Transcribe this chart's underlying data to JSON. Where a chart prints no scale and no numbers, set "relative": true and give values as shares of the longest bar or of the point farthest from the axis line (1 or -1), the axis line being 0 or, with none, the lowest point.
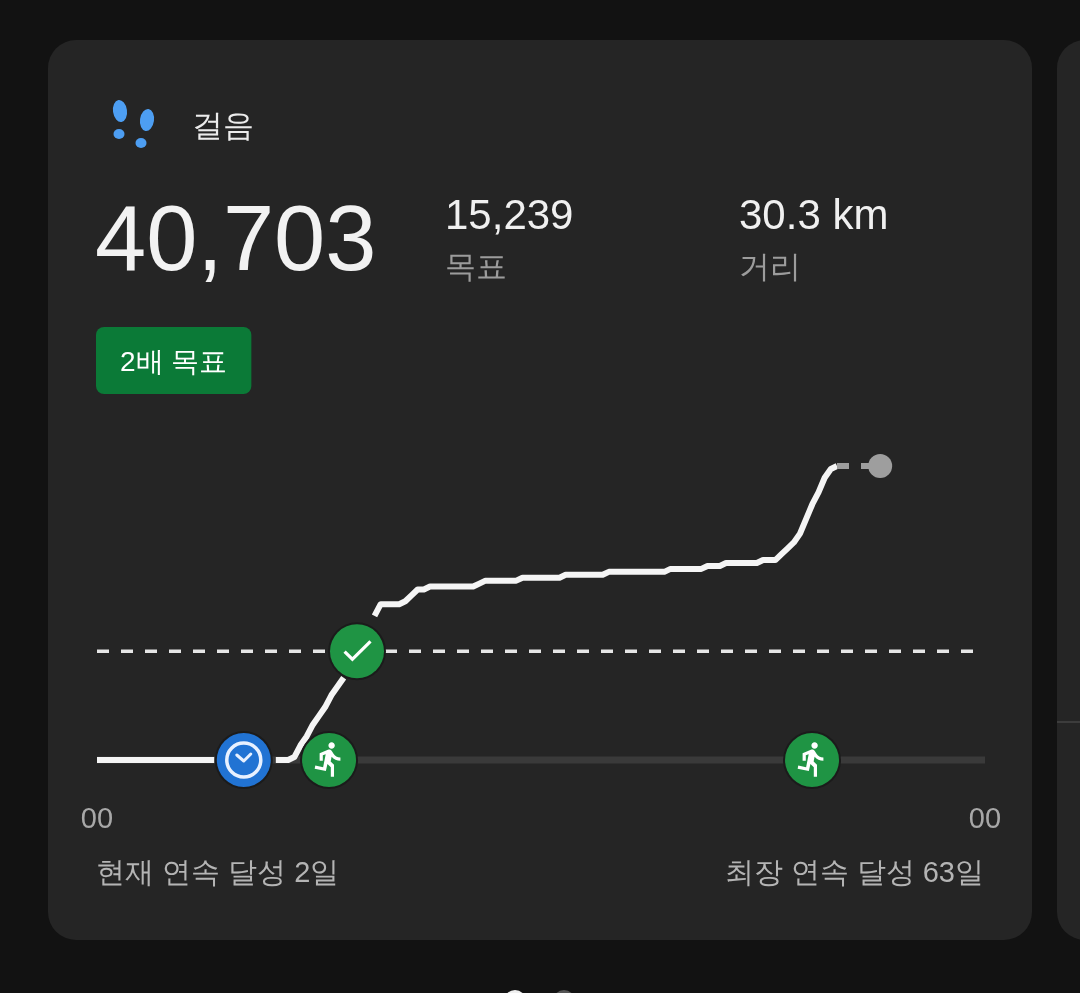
{
  "chart_data": {
    "type": "line",
    "title": "걸음",
    "relative": true,
    "categories": [
      "00",
      null,
      null,
      null,
      null,
      null,
      null,
      null,
      null,
      null,
      null,
      null,
      null,
      null,
      null,
      null,
      null,
      null,
      null,
      null,
      null,
      null,
      null,
      null,
      null,
      null,
      null,
      null,
      null,
      null,
      null,
      null,
      null,
      null,
      null,
      null,
      null,
      null,
      null,
      null,
      null,
      null,
      null,
      null,
      null,
      null,
      null,
      null,
      null,
      null,
      null,
      null,
      null,
      null,
      null,
      null,
      null,
      null,
      null,
      null,
      null,
      null,
      null,
      null,
      null,
      null,
      null,
      null,
      null,
      null,
      null,
      null,
      null,
      null,
      null,
      null,
      null,
      null,
      null,
      null,
      null,
      null,
      null,
      null,
      null,
      null,
      null,
      null,
      null,
      null,
      null,
      null,
      null,
      null,
      null,
      null,
      null,
      null,
      null,
      null,
      null,
      null,
      null,
      null,
      null,
      null,
      null,
      null,
      null,
      null,
      null,
      null,
      null,
      null,
      null,
      null,
      null,
      null,
      null,
      null,
      null,
      null,
      null,
      null,
      null,
      null,
      null,
      null,
      null,
      null,
      null,
      null,
      null,
      null,
      null,
      null,
      null,
      null,
      null,
      null,
      null,
      null,
      null,
      null,
      "00"
    ],
    "series": [
      {
        "color": "#f5f5f5",
        "marker": "none",
        "line_style": "solid",
        "values": [
          0,
          0,
          0,
          0,
          0,
          0,
          0,
          0,
          0,
          0,
          0,
          0,
          0,
          0,
          0,
          0,
          0,
          0,
          0,
          0,
          null,
          null,
          null,
          null,
          null,
          null,
          null,
          null,
          null,
          0,
          0,
          0,
          0.01,
          0.05,
          0.08,
          0.12,
          0.15,
          0.18,
          0.22,
          0.25,
          0.28,
          null,
          null,
          null,
          null,
          0.49,
          0.53,
          0.53,
          0.53,
          0.53,
          0.54,
          0.56,
          0.58,
          0.58,
          0.59,
          0.59,
          0.59,
          0.59,
          0.59,
          0.59,
          0.59,
          0.59,
          0.6,
          0.61,
          0.61,
          0.61,
          0.61,
          0.61,
          0.61,
          0.62,
          0.62,
          0.62,
          0.62,
          0.62,
          0.62,
          0.62,
          0.63,
          0.63,
          0.63,
          0.63,
          0.63,
          0.63,
          0.63,
          0.64,
          0.64,
          0.64,
          0.64,
          0.64,
          0.64,
          0.64,
          0.64,
          0.64,
          0.64,
          0.65,
          0.65,
          0.65,
          0.65,
          0.65,
          0.65,
          0.66,
          0.66,
          0.66,
          0.67,
          0.67,
          0.67,
          0.67,
          0.67,
          0.67,
          0.68,
          0.68,
          0.68,
          0.7,
          0.72,
          0.74,
          0.77,
          0.82,
          0.87,
          0.91,
          0.96,
          0.99,
          1.0,
          null,
          null,
          null,
          null,
          null,
          null,
          null,
          null,
          null,
          null,
          null,
          null,
          null,
          null,
          null,
          null,
          null,
          null,
          null,
          null,
          null,
          null,
          null,
          null
        ]
      },
      {
        "color": "#9e9e9e",
        "marker": "none",
        "line_style": "dashed",
        "values": [
          null,
          null,
          null,
          null,
          null,
          null,
          null,
          null,
          null,
          null,
          null,
          null,
          null,
          null,
          null,
          null,
          null,
          null,
          null,
          null,
          null,
          null,
          null,
          null,
          null,
          null,
          null,
          null,
          null,
          null,
          null,
          null,
          null,
          null,
          null,
          null,
          null,
          null,
          null,
          null,
          null,
          null,
          null,
          null,
          null,
          null,
          null,
          null,
          null,
          null,
          null,
          null,
          null,
          null,
          null,
          null,
          null,
          null,
          null,
          null,
          null,
          null,
          null,
          null,
          null,
          null,
          null,
          null,
          null,
          null,
          null,
          null,
          null,
          null,
          null,
          null,
          null,
          null,
          null,
          null,
          null,
          null,
          null,
          null,
          null,
          null,
          null,
          null,
          null,
          null,
          null,
          null,
          null,
          null,
          null,
          null,
          null,
          null,
          null,
          null,
          null,
          null,
          null,
          null,
          null,
          null,
          null,
          null,
          null,
          null,
          null,
          null,
          null,
          null,
          null,
          null,
          null,
          null,
          null,
          null,
          1.0,
          1.0,
          1.0,
          1.0,
          1.0,
          1.0,
          1.0,
          1.0,
          null,
          null,
          null,
          null,
          null,
          null,
          null,
          null,
          null,
          null,
          null,
          null,
          null,
          null,
          null,
          null,
          null
        ]
      },
      {
        "type": "scatter",
        "color": "#9e9e9e",
        "marker": "circle",
        "values": [
          null,
          null,
          null,
          null,
          null,
          null,
          null,
          null,
          null,
          null,
          null,
          null,
          null,
          null,
          null,
          null,
          null,
          null,
          null,
          null,
          null,
          null,
          null,
          null,
          null,
          null,
          null,
          null,
          null,
          null,
          null,
          null,
          null,
          null,
          null,
          null,
          null,
          null,
          null,
          null,
          null,
          null,
          null,
          null,
          null,
          null,
          null,
          null,
          null,
          null,
          null,
          null,
          null,
          null,
          null,
          null,
          null,
          null,
          null,
          null,
          null,
          null,
          null,
          null,
          null,
          null,
          null,
          null,
          null,
          null,
          null,
          null,
          null,
          null,
          null,
          null,
          null,
          null,
          null,
          null,
          null,
          null,
          null,
          null,
          null,
          null,
          null,
          null,
          null,
          null,
          null,
          null,
          null,
          null,
          null,
          null,
          null,
          null,
          null,
          null,
          null,
          null,
          null,
          null,
          null,
          null,
          null,
          null,
          null,
          null,
          null,
          null,
          null,
          null,
          null,
          null,
          null,
          null,
          null,
          null,
          null,
          null,
          null,
          null,
          null,
          null,
          null,
          1.0,
          null,
          null,
          null,
          null,
          null,
          null,
          null,
          null,
          null,
          null,
          null,
          null,
          null,
          null,
          null,
          null,
          null
        ]
      }
    ],
    "ref_lines": [
      {
        "axis": "y",
        "value": 0.37,
        "color": "#e6e6e6",
        "line_style": "dashed"
      }
    ],
    "annotations": [
      "40,703",
      "15,239",
      "목표",
      "30.3 km",
      "거리",
      "2배 목표",
      "현재 연속 달성 2일",
      "최장 연속 달성 63일"
    ]
  }
}
